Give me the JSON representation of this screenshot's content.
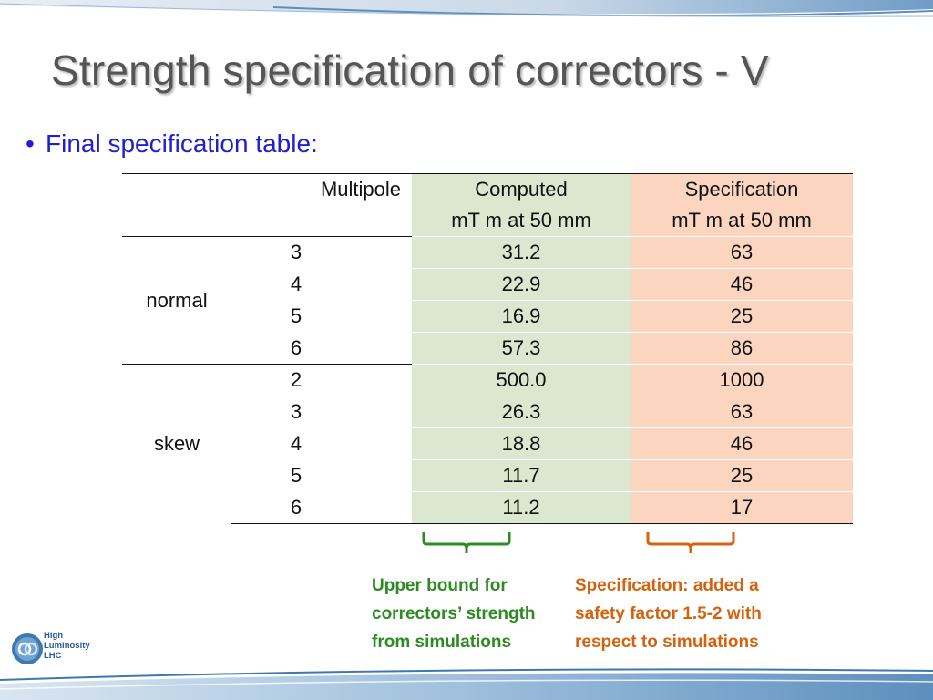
{
  "slide": {
    "title": "Strength specification of correctors - V",
    "bullet": "Final specification table:"
  },
  "table": {
    "headers": {
      "multipole": "Multipole",
      "computed_line1": "Computed",
      "computed_line2": "mT m at 50 mm",
      "spec_line1": "Specification",
      "spec_line2": "mT m at 50 mm"
    },
    "groups": [
      {
        "label": "normal",
        "rows": [
          {
            "multipole": "3",
            "computed": "31.2",
            "specification": "63"
          },
          {
            "multipole": "4",
            "computed": "22.9",
            "specification": "46"
          },
          {
            "multipole": "5",
            "computed": "16.9",
            "specification": "25"
          },
          {
            "multipole": "6",
            "computed": "57.3",
            "specification": "86"
          }
        ]
      },
      {
        "label": "skew",
        "rows": [
          {
            "multipole": "2",
            "computed": "500.0",
            "specification": "1000"
          },
          {
            "multipole": "3",
            "computed": "26.3",
            "specification": "63"
          },
          {
            "multipole": "4",
            "computed": "18.8",
            "specification": "46"
          },
          {
            "multipole": "5",
            "computed": "11.7",
            "specification": "25"
          },
          {
            "multipole": "6",
            "computed": "11.2",
            "specification": "17"
          }
        ]
      }
    ]
  },
  "notes": {
    "computed": [
      "Upper bound for",
      "correctors’ strength",
      "from simulations"
    ],
    "specification": [
      "Specification: added a",
      "safety factor 1.5-2 with",
      "respect to simulations"
    ]
  },
  "colors": {
    "computed_column": "#dbe8cf",
    "specification_column": "#fbd5bf",
    "note_green": "#2e8b22",
    "note_orange": "#d4620e",
    "bullet_blue": "#1f1fd0"
  },
  "logo": {
    "icon": "hl-lhc-logo-icon",
    "lines": [
      "High",
      "Luminosity",
      "LHC"
    ]
  }
}
